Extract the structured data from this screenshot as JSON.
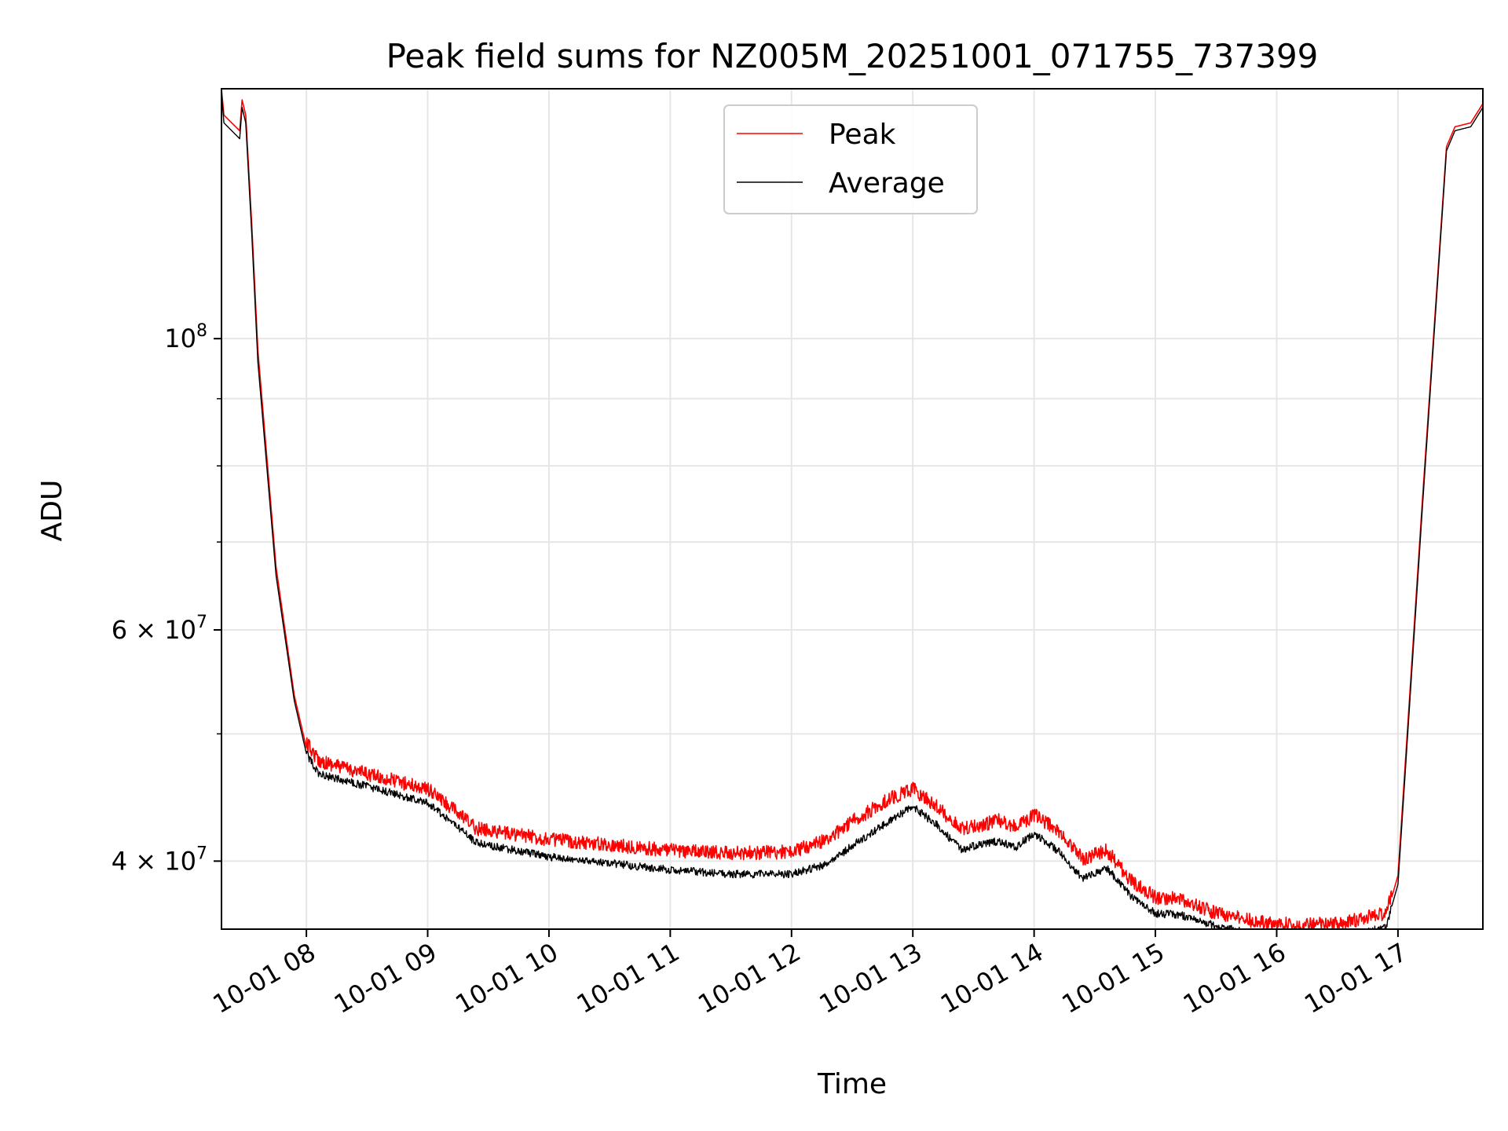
{
  "chart_data": {
    "type": "line",
    "title": "Peak field sums for NZ005M_20251001_071755_737399",
    "xlabel": "Time",
    "ylabel": "ADU",
    "yscale": "log",
    "xlim_hours": [
      7.3,
      17.7
    ],
    "ylim": [
      35500000,
      155000000
    ],
    "grid": true,
    "legend_position": "upper center",
    "x_ticks": [
      {
        "value": 8,
        "label": "10-01 08"
      },
      {
        "value": 9,
        "label": "10-01 09"
      },
      {
        "value": 10,
        "label": "10-01 10"
      },
      {
        "value": 11,
        "label": "10-01 11"
      },
      {
        "value": 12,
        "label": "10-01 12"
      },
      {
        "value": 13,
        "label": "10-01 13"
      },
      {
        "value": 14,
        "label": "10-01 14"
      },
      {
        "value": 15,
        "label": "10-01 15"
      },
      {
        "value": 16,
        "label": "10-01 16"
      },
      {
        "value": 17,
        "label": "10-01 17"
      }
    ],
    "y_major_ticks": [
      {
        "value": 100000000,
        "mantissa": "",
        "base": "10",
        "exp": "8"
      },
      {
        "value": 60000000,
        "mantissa": "6 × ",
        "base": "10",
        "exp": "7"
      },
      {
        "value": 40000000,
        "mantissa": "4 × ",
        "base": "10",
        "exp": "7"
      }
    ],
    "y_minor_ticks": [
      50000000,
      70000000,
      80000000,
      90000000
    ],
    "series": [
      {
        "name": "Peak",
        "color": "#ff0000",
        "x": [
          7.3,
          7.32,
          7.45,
          7.47,
          7.5,
          7.55,
          7.6,
          7.75,
          7.9,
          8.0,
          8.1,
          8.5,
          9.0,
          9.2,
          9.4,
          10.0,
          11.0,
          11.5,
          12.0,
          12.3,
          12.5,
          12.8,
          13.0,
          13.2,
          13.4,
          13.55,
          13.7,
          13.85,
          14.0,
          14.2,
          14.4,
          14.6,
          14.8,
          15.0,
          15.2,
          15.5,
          15.8,
          16.0,
          16.5,
          16.9,
          17.0,
          17.2,
          17.4,
          17.47,
          17.6,
          17.7
        ],
        "values": [
          155000000,
          148000000,
          144000000,
          152000000,
          148000000,
          122000000,
          98000000,
          67000000,
          53500000,
          48800000,
          47300000,
          46200000,
          45000000,
          43500000,
          42000000,
          41200000,
          40400000,
          40200000,
          40300000,
          41200000,
          42500000,
          44200000,
          45000000,
          43600000,
          42000000,
          42200000,
          42600000,
          42100000,
          43000000,
          41800000,
          39800000,
          40400000,
          38300000,
          37200000,
          37100000,
          36200000,
          35700000,
          35500000,
          35500000,
          36200000,
          39000000,
          75000000,
          140000000,
          145000000,
          146000000,
          151000000
        ]
      },
      {
        "name": "Average",
        "color": "#000000",
        "x": [
          7.3,
          7.32,
          7.45,
          7.47,
          7.5,
          7.55,
          7.6,
          7.75,
          7.9,
          8.0,
          8.1,
          8.5,
          9.0,
          9.2,
          9.4,
          10.0,
          11.0,
          11.5,
          12.0,
          12.3,
          12.5,
          12.8,
          13.0,
          13.2,
          13.4,
          13.55,
          13.7,
          13.85,
          14.0,
          14.2,
          14.4,
          14.6,
          14.8,
          15.0,
          15.2,
          15.5,
          15.8,
          16.0,
          16.5,
          16.9,
          17.0,
          17.2,
          17.4,
          17.47,
          17.6,
          17.7
        ],
        "values": [
          154000000,
          146000000,
          142000000,
          150000000,
          146000000,
          120000000,
          96000000,
          66000000,
          53000000,
          48300000,
          46600000,
          45600000,
          44300000,
          42800000,
          41300000,
          40300000,
          39400000,
          39100000,
          39100000,
          39800000,
          41100000,
          42900000,
          44000000,
          42600000,
          40800000,
          41200000,
          41400000,
          41000000,
          42000000,
          40700000,
          38800000,
          39500000,
          37600000,
          36500000,
          36400000,
          35700000,
          35200000,
          35000000,
          35000000,
          35600000,
          38400000,
          74000000,
          139000000,
          144000000,
          145000000,
          150000000
        ]
      }
    ]
  }
}
